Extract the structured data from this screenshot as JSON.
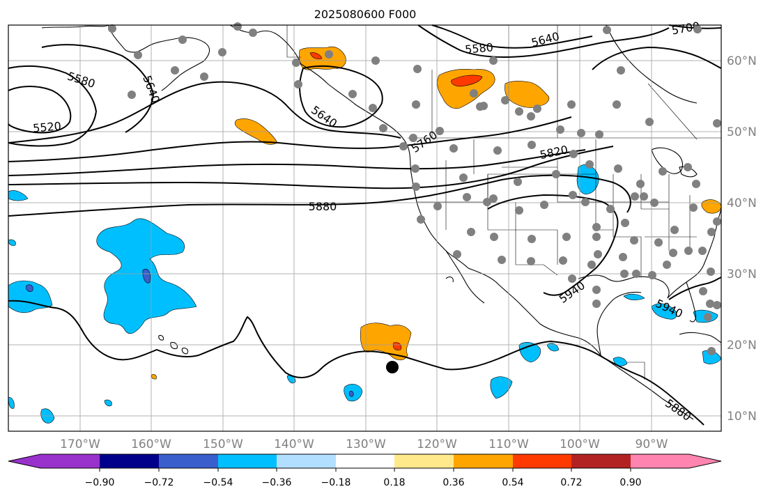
{
  "title": "2025080600 F000",
  "map": {
    "lon_labels": [
      "170°W",
      "160°W",
      "150°W",
      "140°W",
      "130°W",
      "120°W",
      "110°W",
      "100°W",
      "90°W"
    ],
    "lat_labels": [
      "60°N",
      "50°N",
      "40°N",
      "30°N",
      "20°N",
      "10°N"
    ],
    "contour_labels": [
      "5580",
      "5640",
      "5700",
      "5580",
      "5640",
      "5520",
      "5640",
      "5760",
      "5820",
      "5880",
      "5940",
      "5940",
      "5880"
    ],
    "stations_marker": "gray dots",
    "storm_marker": "black dot"
  },
  "colorbar": {
    "colors": [
      "#9932cc",
      "#00008b",
      "#3a5fcd",
      "#00bfff",
      "#b2dfff",
      "#ffffff",
      "#ffe98a",
      "#ffa500",
      "#ff3a00",
      "#b22222",
      "#ff85b0"
    ],
    "labels": [
      "−0.90",
      "−0.72",
      "−0.54",
      "−0.36",
      "−0.18",
      "0.18",
      "0.36",
      "0.54",
      "0.72",
      "0.90"
    ]
  }
}
